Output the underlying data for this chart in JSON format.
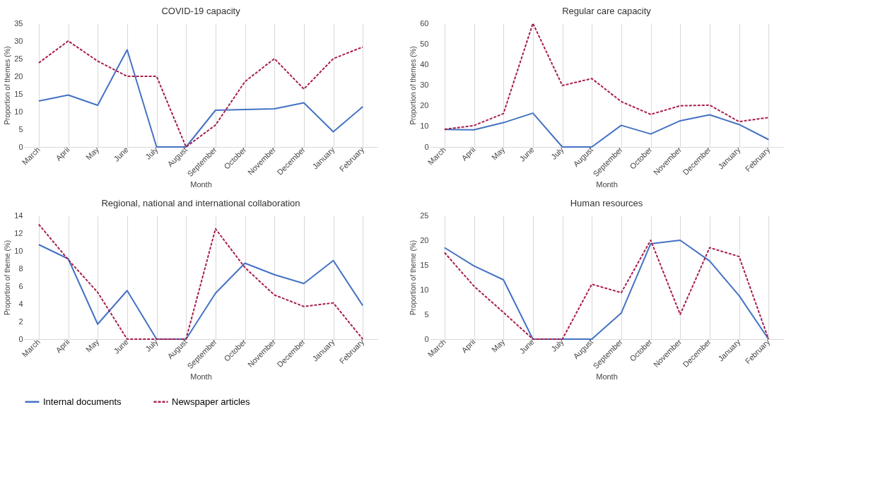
{
  "chart_data": [
    {
      "type": "line",
      "title": "COVID-19 capacity",
      "xlabel": "Month",
      "ylabel": "Proportion of themes (%)",
      "categories": [
        "March",
        "April",
        "May",
        "June",
        "July",
        "August",
        "September",
        "October",
        "November",
        "December",
        "January",
        "February"
      ],
      "ylim": [
        0,
        35
      ],
      "yticks": [
        0,
        5,
        10,
        15,
        20,
        25,
        30,
        35
      ],
      "grid": "x",
      "legend": "bottom",
      "series": [
        {
          "name": "Internal documents",
          "color": "#4472c4",
          "line_style": "solid",
          "values": [
            13,
            14.7,
            11.8,
            27.5,
            0,
            0,
            10.4,
            10.6,
            10.8,
            12.5,
            4.3,
            11.4
          ]
        },
        {
          "name": "Newspaper articles",
          "color": "#a81e4b",
          "line_style": "dashed",
          "values": [
            23.8,
            30,
            24.3,
            20,
            20,
            0,
            6.2,
            18.5,
            25,
            16.4,
            25,
            28.3
          ]
        }
      ]
    },
    {
      "type": "line",
      "title": "Regular care capacity",
      "xlabel": "Month",
      "ylabel": "Proportion of themes (%)",
      "categories": [
        "March",
        "April",
        "May",
        "June",
        "July",
        "August",
        "September",
        "October",
        "November",
        "December",
        "January",
        "February"
      ],
      "ylim": [
        0,
        60
      ],
      "yticks": [
        0,
        10,
        20,
        30,
        40,
        50,
        60
      ],
      "grid": "x",
      "legend": "bottom",
      "series": [
        {
          "name": "Internal documents",
          "color": "#4472c4",
          "line_style": "solid",
          "values": [
            8.5,
            8.3,
            11.8,
            16.4,
            0,
            0,
            10.5,
            6.3,
            12.7,
            15.6,
            10.9,
            3.6
          ]
        },
        {
          "name": "Newspaper articles",
          "color": "#a81e4b",
          "line_style": "dashed",
          "values": [
            8.6,
            10.4,
            16.2,
            60,
            29.8,
            33.2,
            22,
            15.8,
            20,
            20.3,
            12.3,
            14.3
          ]
        }
      ]
    },
    {
      "type": "line",
      "title": "Regional, national and international  collaboration",
      "xlabel": "Month",
      "ylabel": "Proportion of theme (%)",
      "categories": [
        "March",
        "April",
        "May",
        "June",
        "July",
        "August",
        "September",
        "October",
        "November",
        "December",
        "January",
        "February"
      ],
      "ylim": [
        0,
        14
      ],
      "yticks": [
        0,
        2,
        4,
        6,
        8,
        10,
        12,
        14
      ],
      "grid": "x",
      "legend": "bottom",
      "series": [
        {
          "name": "Internal documents",
          "color": "#4472c4",
          "line_style": "solid",
          "values": [
            10.7,
            9.1,
            1.7,
            5.5,
            0,
            0,
            5.2,
            8.6,
            7.3,
            6.3,
            8.9,
            3.8
          ]
        },
        {
          "name": "Newspaper articles",
          "color": "#a81e4b",
          "line_style": "dashed",
          "values": [
            13,
            9,
            5.3,
            0,
            0,
            0,
            12.5,
            8.1,
            5,
            3.7,
            4.1,
            0
          ]
        }
      ]
    },
    {
      "type": "line",
      "title": "Human resources",
      "xlabel": "Month",
      "ylabel": "Proportion of theme (%)",
      "categories": [
        "March",
        "April",
        "May",
        "June",
        "July",
        "August",
        "September",
        "October",
        "November",
        "December",
        "January",
        "February"
      ],
      "ylim": [
        0,
        25
      ],
      "yticks": [
        0,
        5,
        10,
        15,
        20,
        25
      ],
      "grid": "x",
      "legend": "bottom",
      "series": [
        {
          "name": "Internal documents",
          "color": "#4472c4",
          "line_style": "solid",
          "values": [
            18.5,
            14.8,
            12,
            0,
            0,
            0,
            5.3,
            19.3,
            20,
            15.8,
            8.8,
            0
          ]
        },
        {
          "name": "Newspaper articles",
          "color": "#a81e4b",
          "line_style": "dashed",
          "values": [
            17.5,
            10.7,
            5.4,
            0,
            0,
            11.1,
            9.4,
            20,
            5,
            18.5,
            16.7,
            0
          ]
        }
      ]
    }
  ]
}
